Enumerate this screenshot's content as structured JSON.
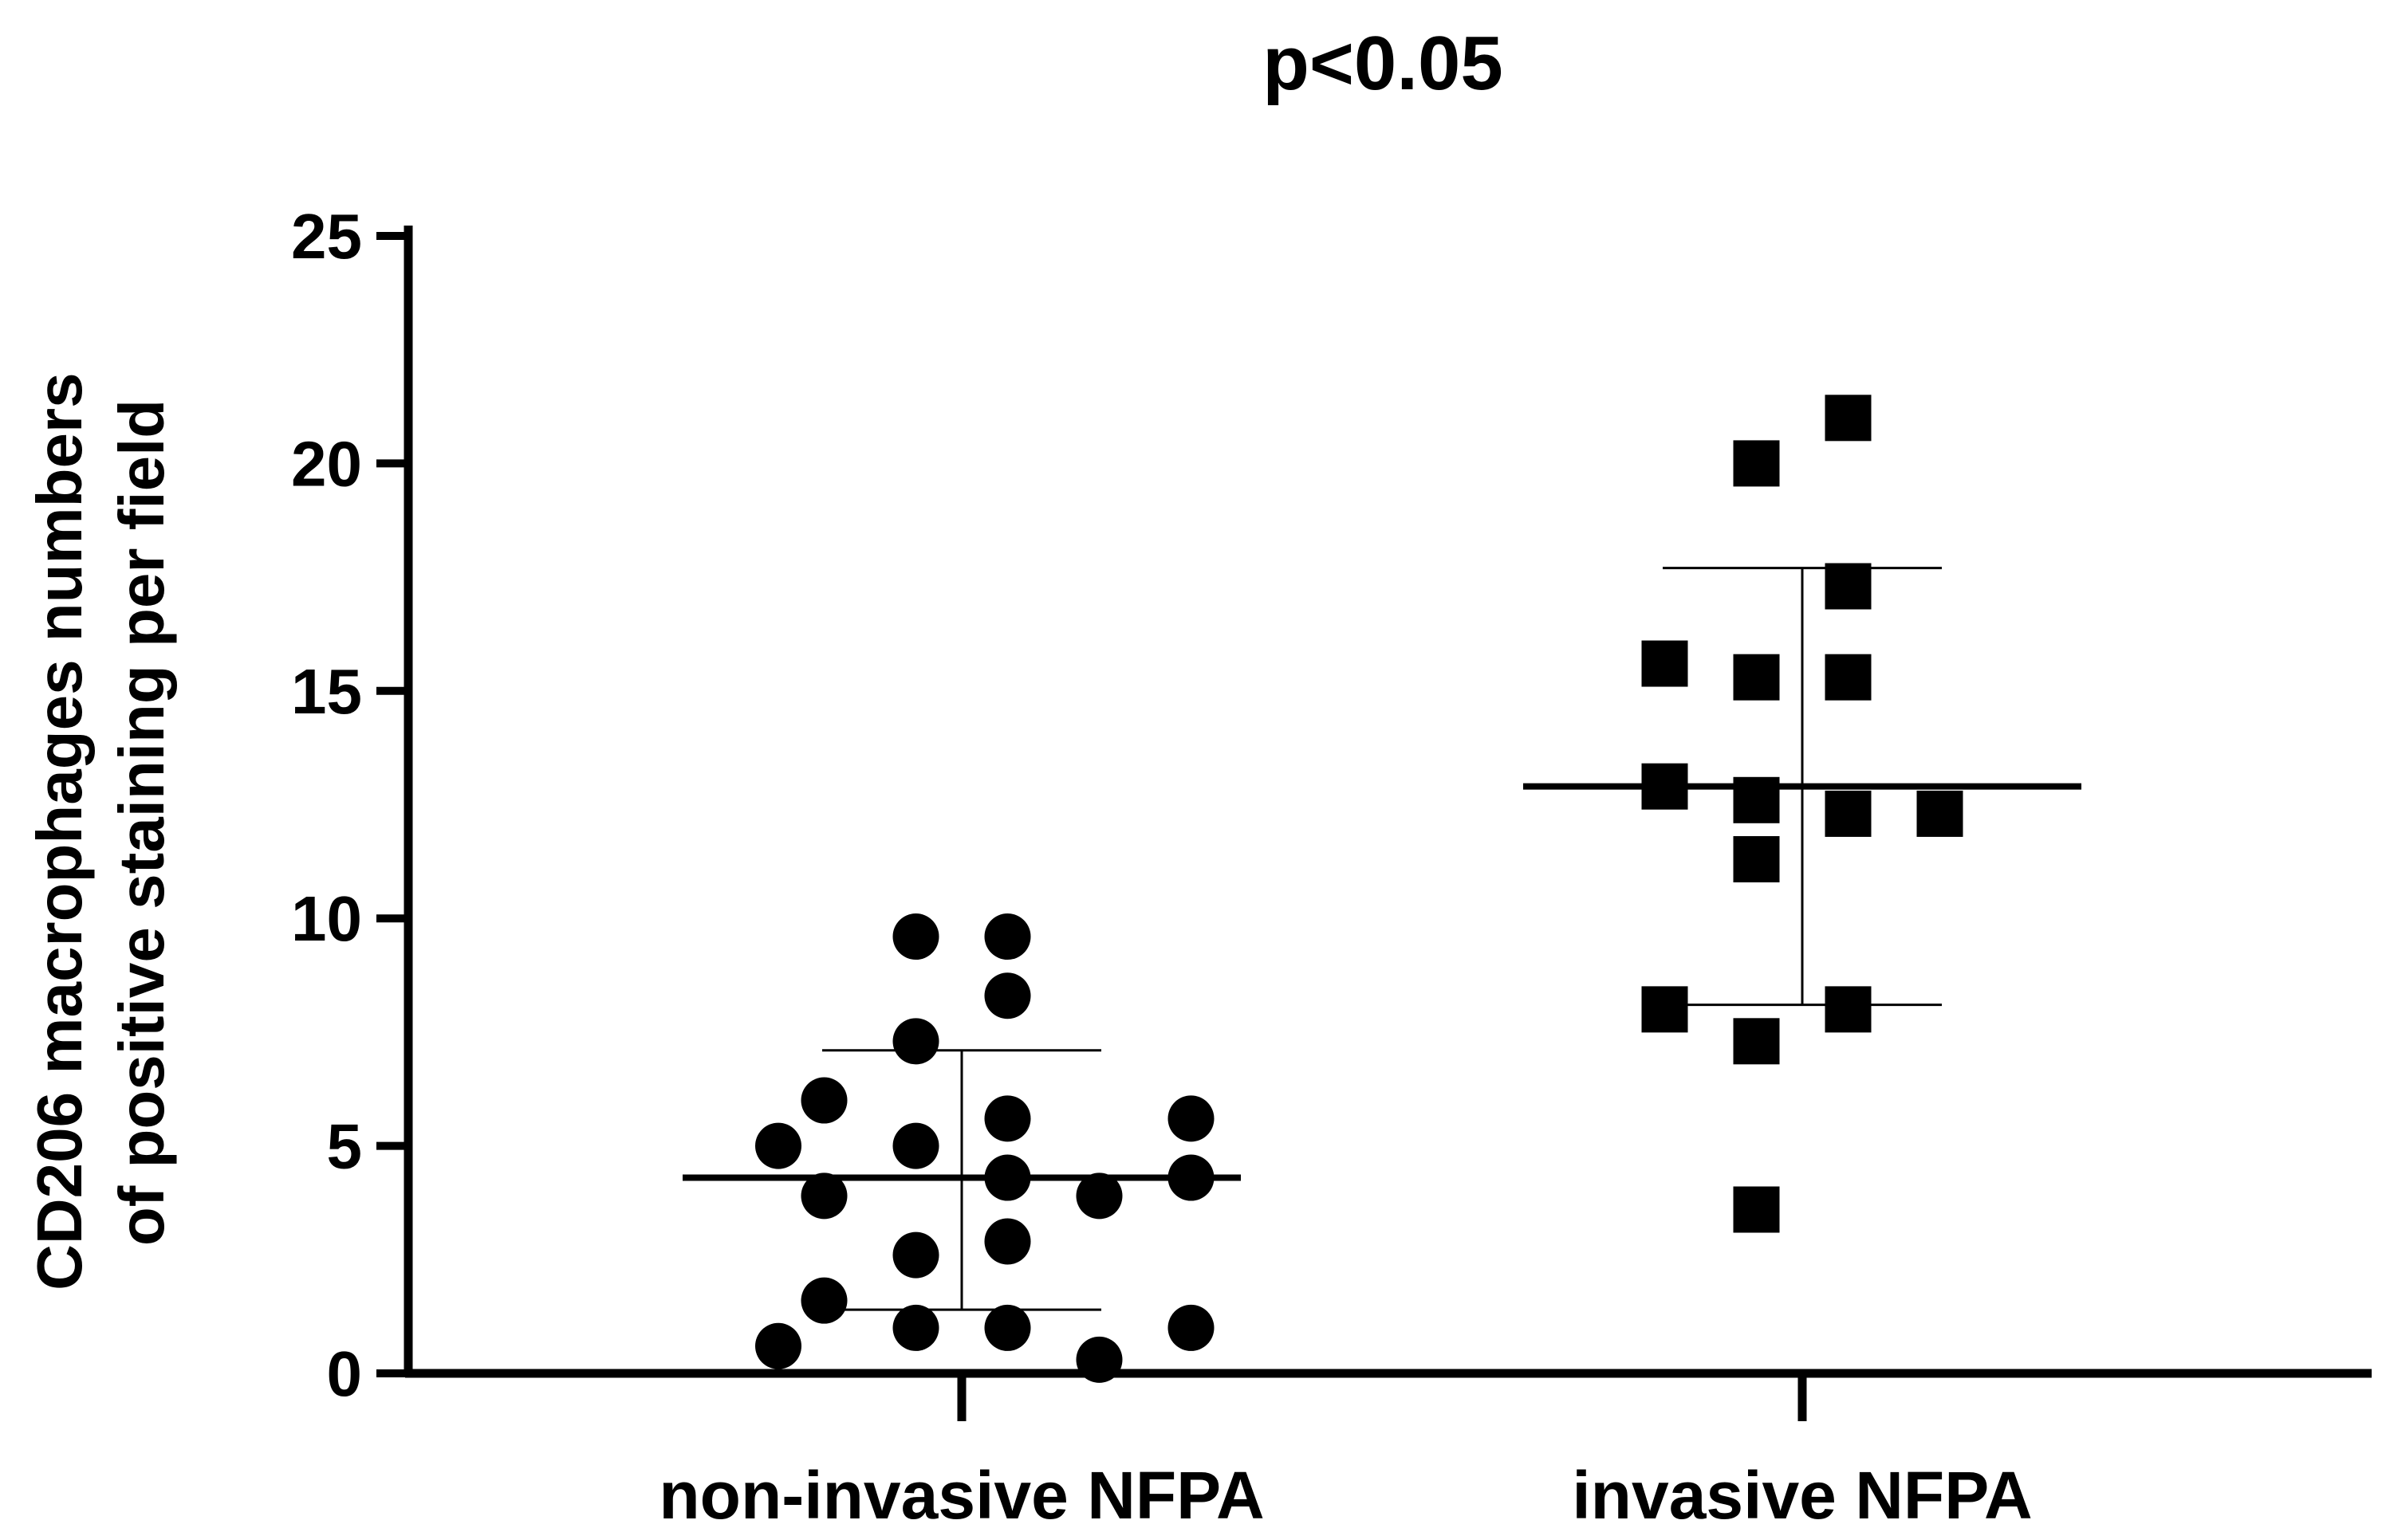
{
  "chart_data": {
    "type": "scatter",
    "title": "p<0.05",
    "ylabel_lines": [
      "CD206 macrophages numbers",
      "of positive staining per field"
    ],
    "xlabel": "",
    "ylim": [
      0,
      25
    ],
    "yticks": [
      "0",
      "5",
      "10",
      "15",
      "20",
      "25"
    ],
    "categories": [
      "non-invasive NFPA",
      "invasive NFPA"
    ],
    "grid": false,
    "series": [
      {
        "category": "non-invasive NFPA",
        "marker": "circle",
        "mean": 4.3,
        "sd_low": 1.4,
        "sd_high": 7.1,
        "points": [
          {
            "offset": -4,
            "y": 0.6
          },
          {
            "offset": -4,
            "y": 5.0
          },
          {
            "offset": -3,
            "y": 3.9
          },
          {
            "offset": -3,
            "y": 6.0
          },
          {
            "offset": -3,
            "y": 1.6
          },
          {
            "offset": -1,
            "y": 9.6
          },
          {
            "offset": -1,
            "y": 7.3
          },
          {
            "offset": -1,
            "y": 5.0
          },
          {
            "offset": -1,
            "y": 2.6
          },
          {
            "offset": -1,
            "y": 1.0
          },
          {
            "offset": 1,
            "y": 9.6
          },
          {
            "offset": 1,
            "y": 8.3
          },
          {
            "offset": 1,
            "y": 5.6
          },
          {
            "offset": 1,
            "y": 4.3
          },
          {
            "offset": 1,
            "y": 2.9
          },
          {
            "offset": 1,
            "y": 1.0
          },
          {
            "offset": 3,
            "y": 3.9
          },
          {
            "offset": 3,
            "y": 0.3
          },
          {
            "offset": 5,
            "y": 5.6
          },
          {
            "offset": 5,
            "y": 4.3
          },
          {
            "offset": 5,
            "y": 1.0
          }
        ]
      },
      {
        "category": "invasive NFPA",
        "marker": "square",
        "mean": 12.9,
        "sd_low": 8.1,
        "sd_high": 17.7,
        "points": [
          {
            "offset": -3,
            "y": 15.6
          },
          {
            "offset": -3,
            "y": 12.9
          },
          {
            "offset": -3,
            "y": 8.0
          },
          {
            "offset": -1,
            "y": 20.0
          },
          {
            "offset": -1,
            "y": 15.3
          },
          {
            "offset": -1,
            "y": 12.6
          },
          {
            "offset": -1,
            "y": 11.3
          },
          {
            "offset": -1,
            "y": 7.3
          },
          {
            "offset": -1,
            "y": 3.6
          },
          {
            "offset": 1,
            "y": 21.0
          },
          {
            "offset": 1,
            "y": 17.3
          },
          {
            "offset": 1,
            "y": 15.3
          },
          {
            "offset": 1,
            "y": 12.3
          },
          {
            "offset": 1,
            "y": 8.0
          },
          {
            "offset": 3,
            "y": 12.3
          }
        ]
      }
    ]
  }
}
